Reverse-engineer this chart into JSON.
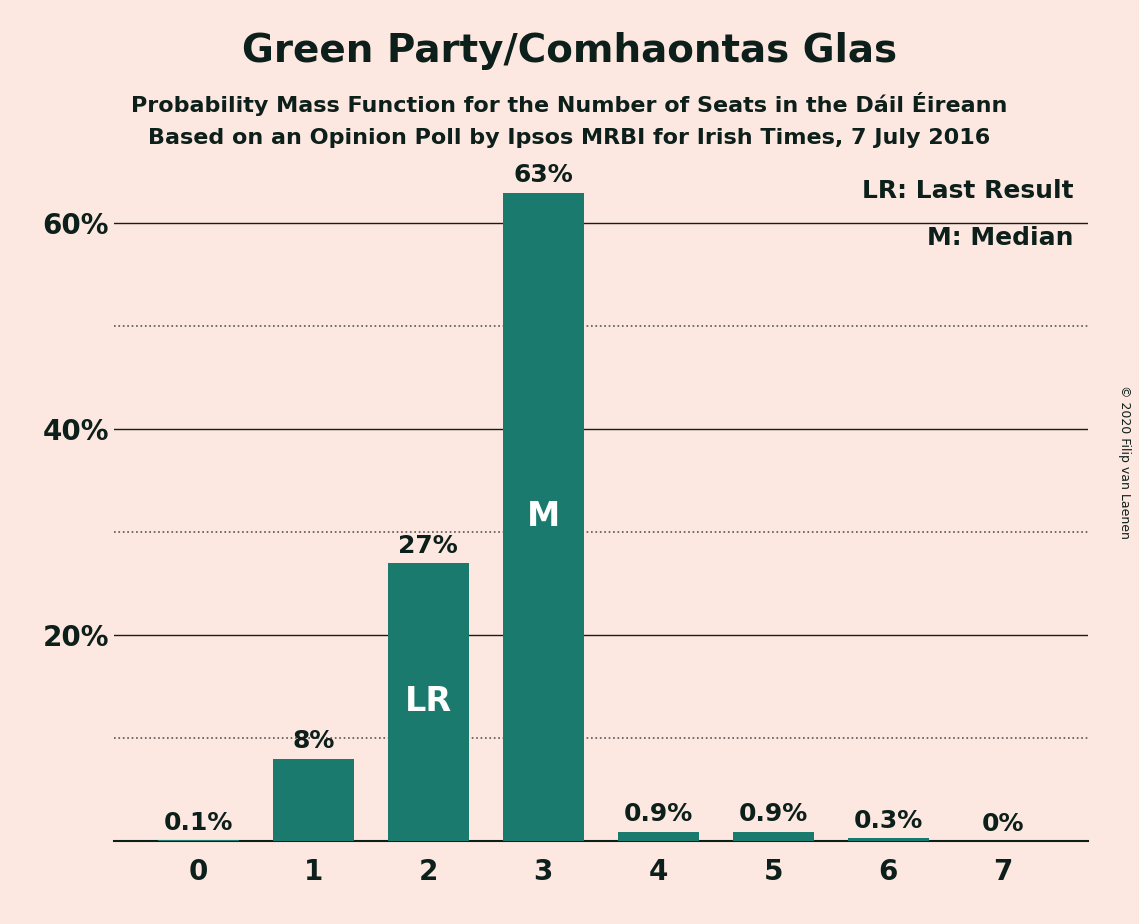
{
  "title": "Green Party/Comhaontas Glas",
  "subtitle1": "Probability Mass Function for the Number of Seats in the Dáil Éireann",
  "subtitle2": "Based on an Opinion Poll by Ipsos MRBI for Irish Times, 7 July 2016",
  "categories": [
    0,
    1,
    2,
    3,
    4,
    5,
    6,
    7
  ],
  "values": [
    0.1,
    8.0,
    27.0,
    63.0,
    0.9,
    0.9,
    0.3,
    0.0
  ],
  "bar_color": "#1a7a6e",
  "background_color": "#fce8e0",
  "text_color": "#0d1f1a",
  "bar_labels": [
    "0.1%",
    "8%",
    "27%",
    "63%",
    "0.9%",
    "0.9%",
    "0.3%",
    "0%"
  ],
  "bar_label_colors": [
    "#0d1f1a",
    "#0d1f1a",
    "#0d1f1a",
    "#0d1f1a",
    "#0d1f1a",
    "#0d1f1a",
    "#0d1f1a",
    "#0d1f1a"
  ],
  "inner_labels": [
    null,
    null,
    "LR",
    "M",
    null,
    null,
    null,
    null
  ],
  "ylim": [
    0,
    66
  ],
  "ytick_positions": [
    20,
    40,
    60
  ],
  "ytick_labels": [
    "20%",
    "40%",
    "60%"
  ],
  "solid_grid": [
    20,
    40,
    60
  ],
  "dotted_grid": [
    10,
    30,
    50
  ],
  "legend_text1": "LR: Last Result",
  "legend_text2": "M: Median",
  "copyright_text": "© 2020 Filip van Laenen",
  "title_fontsize": 28,
  "subtitle_fontsize": 16,
  "label_fontsize": 18,
  "tick_fontsize": 20,
  "inner_label_fontsize": 24,
  "legend_fontsize": 18,
  "copyright_fontsize": 9
}
